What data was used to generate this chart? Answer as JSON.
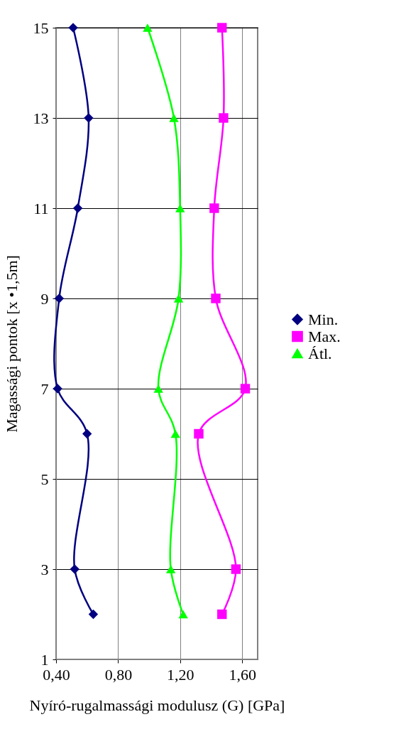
{
  "chart_data": {
    "type": "line",
    "xlabel": "Nyíró-rugalmassági modulusz (G) [GPa]",
    "ylabel": "Magassági pontok [x •1,5m]",
    "xlim": [
      0.4,
      1.7
    ],
    "xticks": [
      {
        "value": 0.4,
        "label": "0,40"
      },
      {
        "value": 0.8,
        "label": "0,80"
      },
      {
        "value": 1.2,
        "label": "1,20"
      },
      {
        "value": 1.6,
        "label": "1,60"
      }
    ],
    "ylim": [
      1,
      15
    ],
    "yticks": [
      1,
      3,
      5,
      7,
      9,
      11,
      13,
      15
    ],
    "orientation": "horizontal",
    "grid": true,
    "legend": "right",
    "line_style": "solid",
    "series": [
      {
        "name": "Min.",
        "color": "#000080",
        "marker": "diamond",
        "x": [
          15,
          13,
          11,
          9,
          7,
          6,
          3,
          2
        ],
        "values": [
          0.51,
          0.61,
          0.54,
          0.42,
          0.41,
          0.6,
          0.52,
          0.64
        ]
      },
      {
        "name": "Max.",
        "color": "#ff00ff",
        "marker": "square",
        "x": [
          15,
          13,
          11,
          9,
          7,
          6,
          3,
          2
        ],
        "values": [
          1.47,
          1.48,
          1.42,
          1.43,
          1.62,
          1.32,
          1.56,
          1.47
        ]
      },
      {
        "name": "Átl.",
        "color": "#00ff00",
        "marker": "triangle",
        "x": [
          15,
          13,
          11,
          9,
          7,
          6,
          3,
          2
        ],
        "values": [
          0.99,
          1.16,
          1.2,
          1.19,
          1.06,
          1.17,
          1.14,
          1.22
        ]
      }
    ]
  }
}
